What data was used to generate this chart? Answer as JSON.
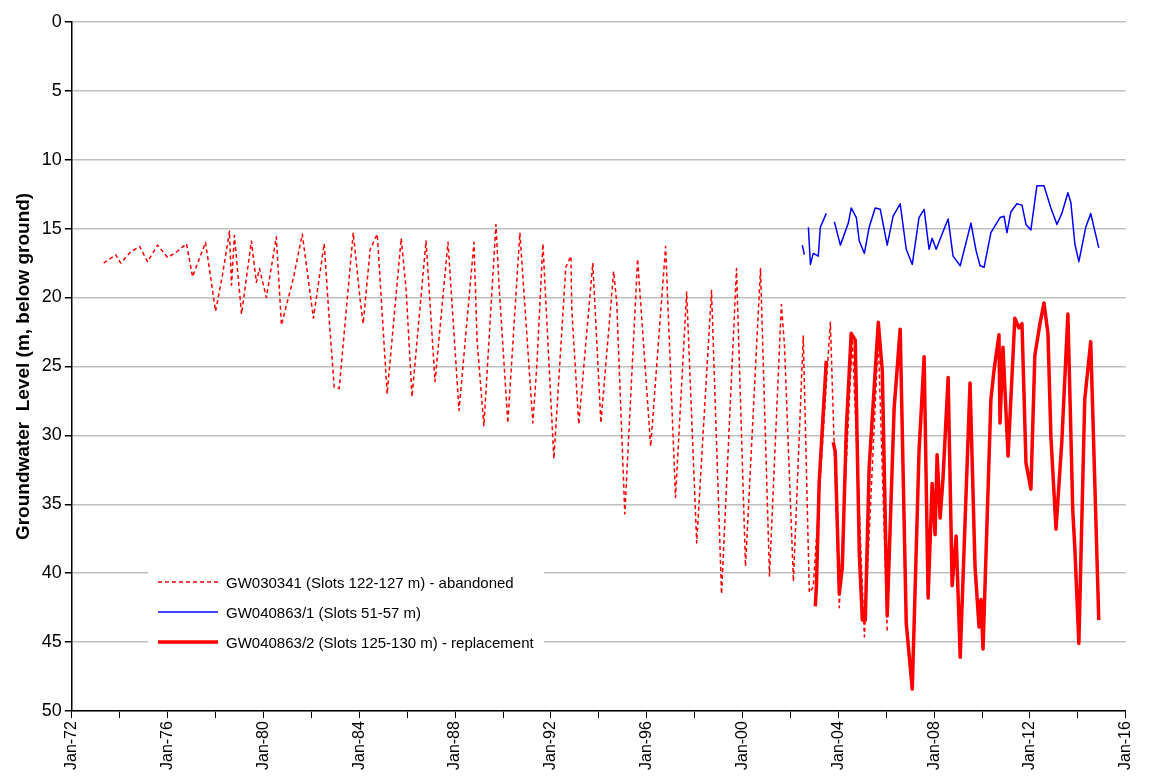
{
  "chart_data": {
    "type": "line",
    "ylabel": "Groundwater  Level (m, below ground)",
    "xlim": [
      "1972-01",
      "2016-01"
    ],
    "xticks": [
      {
        "value": "1972-01",
        "label": "Jan-72"
      },
      {
        "value": "1974-01",
        "label": null
      },
      {
        "value": "1976-01",
        "label": "Jan-76"
      },
      {
        "value": "1978-01",
        "label": null
      },
      {
        "value": "1980-01",
        "label": "Jan-80"
      },
      {
        "value": "1982-01",
        "label": null
      },
      {
        "value": "1984-01",
        "label": "Jan-84"
      },
      {
        "value": "1986-01",
        "label": null
      },
      {
        "value": "1988-01",
        "label": "Jan-88"
      },
      {
        "value": "1990-01",
        "label": null
      },
      {
        "value": "1992-01",
        "label": "Jan-92"
      },
      {
        "value": "1994-01",
        "label": null
      },
      {
        "value": "1996-01",
        "label": "Jan-96"
      },
      {
        "value": "1998-01",
        "label": null
      },
      {
        "value": "2000-01",
        "label": "Jan-00"
      },
      {
        "value": "2002-01",
        "label": null
      },
      {
        "value": "2004-01",
        "label": "Jan-04"
      },
      {
        "value": "2006-01",
        "label": null
      },
      {
        "value": "2008-01",
        "label": "Jan-08"
      },
      {
        "value": "2010-01",
        "label": null
      },
      {
        "value": "2012-01",
        "label": "Jan-12"
      },
      {
        "value": "2014-01",
        "label": null
      },
      {
        "value": "2016-01",
        "label": "Jan-16"
      }
    ],
    "ylim": [
      50,
      0
    ],
    "yticks": [
      0,
      5,
      10,
      15,
      20,
      25,
      30,
      35,
      40,
      45,
      50
    ],
    "grid": "y",
    "legend": "bottom left",
    "marker": "none",
    "series": [
      {
        "name": "GW030341 (Slots 122-127 m) - abandoned",
        "color": "#ff0000",
        "line_style": "dashed",
        "x": [
          "1973-05-01",
          "1973-11-01",
          "1974-01-15",
          "1974-06-15",
          "1974-11-01",
          "1975-03-01",
          "1975-08-01",
          "1976-01-01",
          "1976-05-15",
          "1976-10-15",
          "1977-01-15",
          "1977-08-01",
          "1978-01-01",
          "1978-04-15",
          "1978-08-01",
          "1978-09-01",
          "1978-10-15",
          "1979-02-01",
          "1979-07-01",
          "1979-09-15",
          "1979-11-01",
          "1980-02-15",
          "1980-07-15",
          "1980-10-01",
          "1981-04-01",
          "1981-08-15",
          "1982-02-01",
          "1982-07-15",
          "1982-10-01",
          "1982-12-15",
          "1983-03-01",
          "1983-10-01",
          "1984-01-15",
          "1984-03-01",
          "1984-06-15",
          "1984-10-01",
          "1985-03-01",
          "1985-10-01",
          "1985-12-15",
          "1986-03-15",
          "1986-10-15",
          "1987-03-01",
          "1987-04-15",
          "1987-09-15",
          "1988-03-01",
          "1988-10-15",
          "1988-12-01",
          "1989-03-15",
          "1989-09-15",
          "1989-11-01",
          "1990-03-15",
          "1990-09-15",
          "1991-04-01",
          "1991-06-01",
          "1991-09-01",
          "1992-02-15",
          "1992-08-15",
          "1992-11-01",
          "1992-11-15",
          "1993-03-01",
          "1993-10-01",
          "1994-02-01",
          "1994-08-15",
          "1994-10-01",
          "1995-02-01",
          "1995-08-15",
          "1996-03-01",
          "1996-10-15",
          "1997-03-15",
          "1997-09-01",
          "1998-02-01",
          "1998-09-15",
          "1999-02-15",
          "1999-10-01",
          "2000-02-15",
          "2000-10-01",
          "2001-02-15",
          "2001-08-15",
          "2001-10-01",
          "2002-02-15",
          "2002-07-15",
          "2002-10-15",
          "2002-12-15",
          "2003-09-01",
          "2004-01-15",
          "2004-08-01",
          "2005-02-01",
          "2005-09-01",
          "2006-01-15"
        ],
        "values": [
          17.5,
          16.9,
          17.5,
          16.7,
          16.3,
          17.4,
          16.2,
          17.1,
          16.7,
          16.1,
          18.5,
          16.0,
          21.0,
          18.4,
          15.2,
          19.1,
          15.5,
          21.2,
          15.9,
          18.9,
          17.9,
          20.0,
          15.6,
          22.0,
          18.6,
          15.4,
          21.5,
          16.1,
          21.7,
          26.5,
          26.6,
          15.3,
          20.2,
          21.9,
          16.5,
          15.4,
          27.0,
          15.7,
          19.4,
          27.2,
          15.9,
          26.1,
          23.8,
          16.0,
          28.2,
          16.0,
          23.1,
          29.3,
          14.7,
          19.1,
          29.1,
          15.3,
          29.1,
          24.9,
          16.1,
          31.7,
          17.8,
          17.0,
          20.9,
          29.2,
          17.5,
          29.1,
          18.1,
          20.4,
          35.7,
          17.2,
          30.8,
          16.3,
          34.5,
          19.6,
          37.8,
          19.5,
          41.5,
          17.9,
          39.5,
          17.9,
          40.2,
          20.5,
          23.4,
          40.6,
          22.8,
          41.4,
          41.0,
          21.8,
          42.5,
          23.0,
          44.6,
          23.0,
          44.2
        ]
      },
      {
        "name": "GW040863/1 (Slots 51-57 m)",
        "color": "#0000ff",
        "line_style": "solid",
        "x": [
          "2002-07-01",
          "2002-08-01",
          "2002-09-01",
          "2002-10-01",
          "2002-11-01",
          "2002-12-15",
          "2003-03-01",
          "2003-04-01",
          "2003-07-01",
          "2003-09-01",
          "2003-11-01",
          "2004-02-01",
          "2004-06-01",
          "2004-07-15",
          "2004-10-01",
          "2004-11-15",
          "2005-02-01",
          "2005-04-15",
          "2005-07-15",
          "2005-10-01",
          "2006-01-15",
          "2006-04-15",
          "2006-08-01",
          "2006-11-01",
          "2007-02-01",
          "2007-05-15",
          "2007-08-01",
          "2007-10-15",
          "2007-12-01",
          "2008-02-01",
          "2008-05-01",
          "2008-08-01",
          "2008-10-15",
          "2009-02-01",
          "2009-07-15",
          "2009-10-01",
          "2009-12-01",
          "2010-02-01",
          "2010-05-15",
          "2010-10-01",
          "2010-12-01",
          "2011-01-15",
          "2011-03-15",
          "2011-06-15",
          "2011-09-01",
          "2011-11-01",
          "2012-01-15",
          "2012-04-15",
          "2012-08-01",
          "2012-11-15",
          "2013-02-15",
          "2013-05-01",
          "2013-08-01",
          "2013-09-15",
          "2013-11-15",
          "2014-01-15",
          "2014-05-01",
          "2014-07-15",
          "2014-11-15"
        ],
        "values": [
          16.2,
          16.9,
          null,
          14.9,
          17.6,
          16.8,
          17.0,
          14.9,
          13.9,
          null,
          14.5,
          16.2,
          14.6,
          13.5,
          14.2,
          15.9,
          16.8,
          14.9,
          13.5,
          13.6,
          16.2,
          14.1,
          13.2,
          16.5,
          17.6,
          14.2,
          13.6,
          16.5,
          15.7,
          16.5,
          15.4,
          14.3,
          17.0,
          17.7,
          14.6,
          16.6,
          17.7,
          17.8,
          15.3,
          14.2,
          14.1,
          15.3,
          13.8,
          13.2,
          13.3,
          14.7,
          15.1,
          11.9,
          11.9,
          13.5,
          14.7,
          13.9,
          12.4,
          13.1,
          16.1,
          17.4,
          14.9,
          13.9,
          16.4
        ]
      },
      {
        "name": "GW040863/2 (Slots 125-130 m) - replacement",
        "color": "#ff0000",
        "line_style": "solid",
        "x": [
          "2003-01-15",
          "2003-02-01",
          "2003-03-15",
          "2003-07-01",
          "2003-09-01",
          "2003-10-15",
          "2003-11-15",
          "2004-01-15",
          "2004-03-01",
          "2004-05-01",
          "2004-07-15",
          "2004-09-15",
          "2004-11-15",
          "2005-01-01",
          "2005-02-15",
          "2005-04-15",
          "2005-09-01",
          "2005-11-01",
          "2006-01-15",
          "2006-05-01",
          "2006-08-01",
          "2006-11-01",
          "2007-02-01",
          "2007-05-15",
          "2007-08-01",
          "2007-10-01",
          "2007-12-01",
          "2008-01-15",
          "2008-02-15",
          "2008-04-01",
          "2008-05-15",
          "2008-08-01",
          "2008-10-01",
          "2008-12-01",
          "2009-02-01",
          "2009-07-01",
          "2009-09-15",
          "2009-11-15",
          "2009-12-15",
          "2010-01-15",
          "2010-05-15",
          "2010-07-01",
          "2010-09-15",
          "2010-10-01",
          "2010-11-15",
          "2011-02-01",
          "2011-05-15",
          "2011-07-15",
          "2011-09-01",
          "2011-11-01",
          "2012-01-15",
          "2012-03-15",
          "2012-06-01",
          "2012-08-01",
          "2012-10-01",
          "2012-11-15",
          "2013-02-01",
          "2013-05-01",
          "2013-08-01",
          "2013-10-15",
          "2013-11-15",
          "2014-01-15",
          "2014-04-15",
          "2014-07-15",
          "2014-11-15"
        ],
        "values": [
          42.4,
          40.9,
          33.4,
          24.6,
          null,
          30.5,
          31.2,
          41.5,
          39.6,
          29.6,
          22.6,
          23.1,
          38.5,
          43.4,
          43.4,
          32.3,
          21.8,
          25.3,
          43.1,
          28.0,
          22.3,
          43.6,
          48.4,
          31.2,
          24.3,
          41.8,
          33.5,
          37.2,
          31.4,
          36.0,
          33.1,
          25.8,
          40.9,
          37.3,
          46.1,
          26.2,
          39.5,
          43.9,
          41.9,
          45.5,
          27.4,
          25.3,
          22.7,
          29.1,
          23.6,
          31.5,
          21.5,
          22.2,
          21.9,
          32.0,
          33.9,
          24.2,
          21.9,
          20.4,
          22.6,
          30.1,
          36.8,
          30.4,
          21.2,
          35.5,
          38.2,
          45.1,
          27.4,
          23.2,
          43.4
        ]
      }
    ]
  }
}
